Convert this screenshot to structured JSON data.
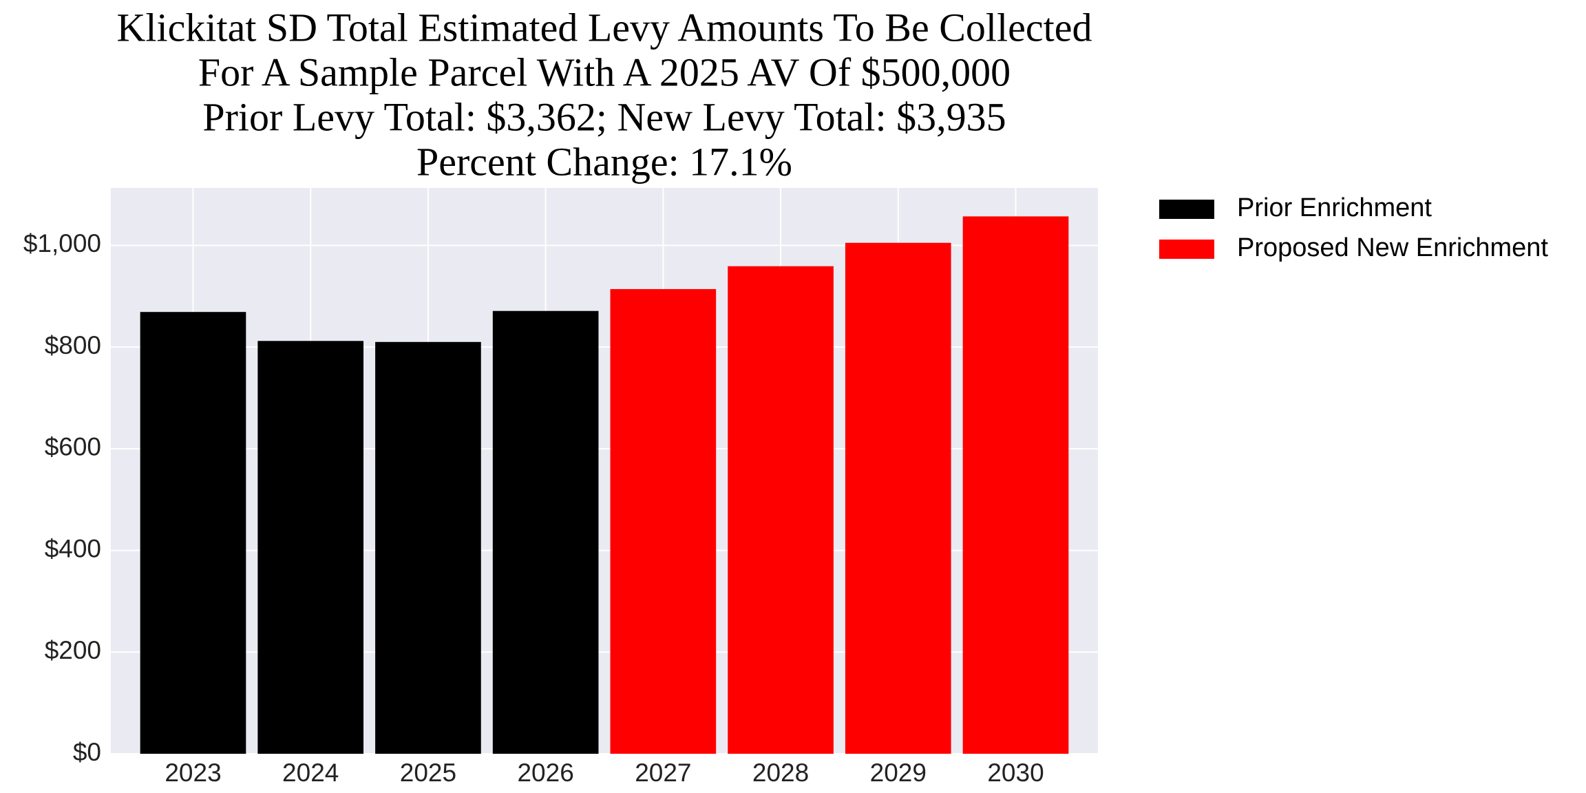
{
  "chart_data": {
    "type": "bar",
    "title": [
      "Klickitat SD Total Estimated Levy Amounts To Be Collected",
      "For A Sample Parcel With A 2025 AV Of $500,000",
      "Prior Levy Total:  $3,362; New Levy Total: $3,935",
      "Percent Change: 17.1%"
    ],
    "categories": [
      "2023",
      "2024",
      "2025",
      "2026",
      "2027",
      "2028",
      "2029",
      "2030"
    ],
    "series": [
      {
        "name": "Prior Enrichment",
        "color": "#000000",
        "values": [
          869,
          812,
          810,
          871,
          null,
          null,
          null,
          null
        ]
      },
      {
        "name": "Proposed New Enrichment",
        "color": "#ff0000",
        "values": [
          null,
          null,
          null,
          null,
          914,
          959,
          1005,
          1057
        ]
      }
    ],
    "ylim": [
      0,
      1113
    ],
    "yticks": [
      {
        "value": 0,
        "label": "$0"
      },
      {
        "value": 200,
        "label": "$200"
      },
      {
        "value": 400,
        "label": "$400"
      },
      {
        "value": 600,
        "label": "$600"
      },
      {
        "value": 800,
        "label": "$800"
      },
      {
        "value": 1000,
        "label": "$1,000"
      }
    ],
    "grid": true,
    "legend": "outside-right"
  }
}
